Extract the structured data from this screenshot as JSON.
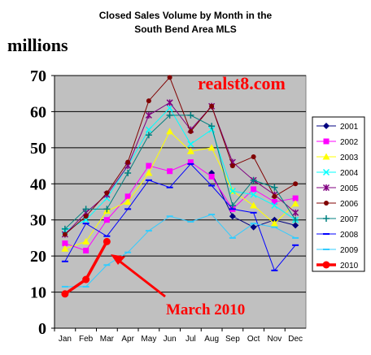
{
  "chart_data": {
    "type": "line",
    "title_line1": "Closed Sales Volume by Month in the",
    "title_line2": "South Bend Area MLS",
    "ylabel": "millions",
    "watermark": "realst8.com",
    "annotation": "March 2010",
    "categories": [
      "Jan",
      "Feb",
      "Mar",
      "Apr",
      "May",
      "Jun",
      "Jul",
      "Aug",
      "Sep",
      "Oct",
      "Nov",
      "Dec"
    ],
    "ylim": [
      0,
      70
    ],
    "yticks": [
      "0",
      "10",
      "20",
      "30",
      "40",
      "50",
      "60",
      "70"
    ],
    "grid": true,
    "plot_background": "#c0c0c0",
    "legend_position": "right",
    "series": [
      {
        "name": "2001",
        "color": "#000080",
        "marker": "diamond",
        "values": [
          null,
          null,
          null,
          null,
          null,
          null,
          null,
          43,
          31,
          28,
          30,
          28.5
        ]
      },
      {
        "name": "2002",
        "color": "#ff00ff",
        "marker": "square",
        "values": [
          23.5,
          21.5,
          30,
          36.5,
          45,
          43.5,
          46,
          42,
          33,
          38.5,
          35,
          36
        ]
      },
      {
        "name": "2003",
        "color": "#ffff00",
        "marker": "triangle",
        "values": [
          22,
          24,
          32.5,
          35,
          43,
          54.5,
          49,
          50,
          38,
          34,
          29,
          34.5
        ]
      },
      {
        "name": "2004",
        "color": "#00ffff",
        "marker": "x",
        "values": [
          27,
          30,
          36,
          45,
          55,
          61,
          51,
          55,
          38,
          37,
          34,
          30
        ]
      },
      {
        "name": "2005",
        "color": "#800080",
        "marker": "star",
        "values": [
          26,
          32,
          37,
          45,
          59,
          62.5,
          55,
          61.5,
          46,
          41,
          37,
          32
        ]
      },
      {
        "name": "2006",
        "color": "#800000",
        "marker": "circle",
        "values": [
          26,
          31,
          37.5,
          46,
          63,
          69.5,
          54.5,
          61.5,
          45,
          47.5,
          36.5,
          40
        ]
      },
      {
        "name": "2007",
        "color": "#008080",
        "marker": "plus",
        "values": [
          27.5,
          33,
          33,
          43,
          53.5,
          59,
          59,
          56,
          34,
          41,
          39,
          30
        ]
      },
      {
        "name": "2008",
        "color": "#0000ff",
        "marker": "dash",
        "values": [
          18.5,
          29,
          25.5,
          33,
          41,
          39,
          45.5,
          39.5,
          33,
          32,
          16,
          23
        ]
      },
      {
        "name": "2009",
        "color": "#33ccff",
        "marker": "dash",
        "values": [
          11.5,
          11.5,
          17.5,
          21,
          27,
          31,
          29.5,
          31.5,
          25,
          29,
          28,
          25
        ]
      },
      {
        "name": "2010",
        "color": "#ff0000",
        "marker": "bigcircle",
        "values": [
          9.5,
          13.5,
          24,
          null,
          null,
          null,
          null,
          null,
          null,
          null,
          null,
          null
        ]
      }
    ]
  }
}
